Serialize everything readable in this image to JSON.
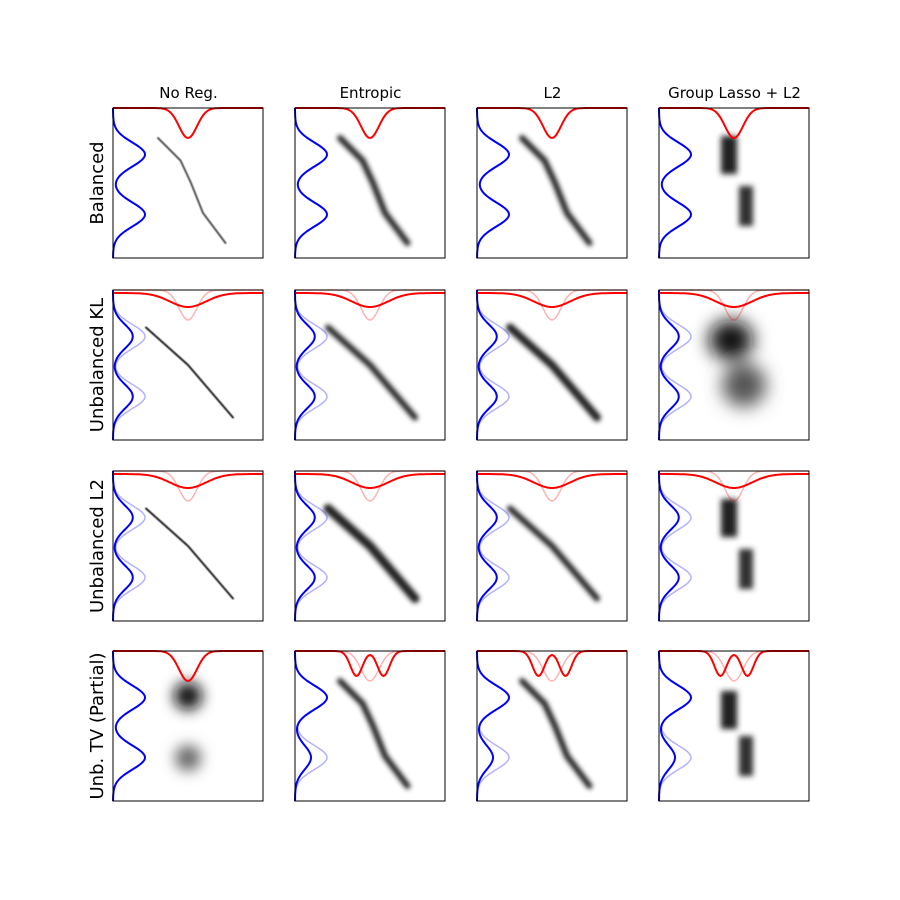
{
  "chart_data": {
    "type": "heatmap",
    "column_titles": [
      "No Reg.",
      "Entropic",
      "L2",
      "Group Lasso + L2"
    ],
    "row_labels": [
      "Balanced",
      "Unbalanced KL",
      "Unbalanced L2",
      "Unb. TV (Partial)"
    ],
    "colors": {
      "source_marginal": "#0000ff",
      "target_marginal": "#ff0000",
      "plan": "#000000"
    }
  }
}
